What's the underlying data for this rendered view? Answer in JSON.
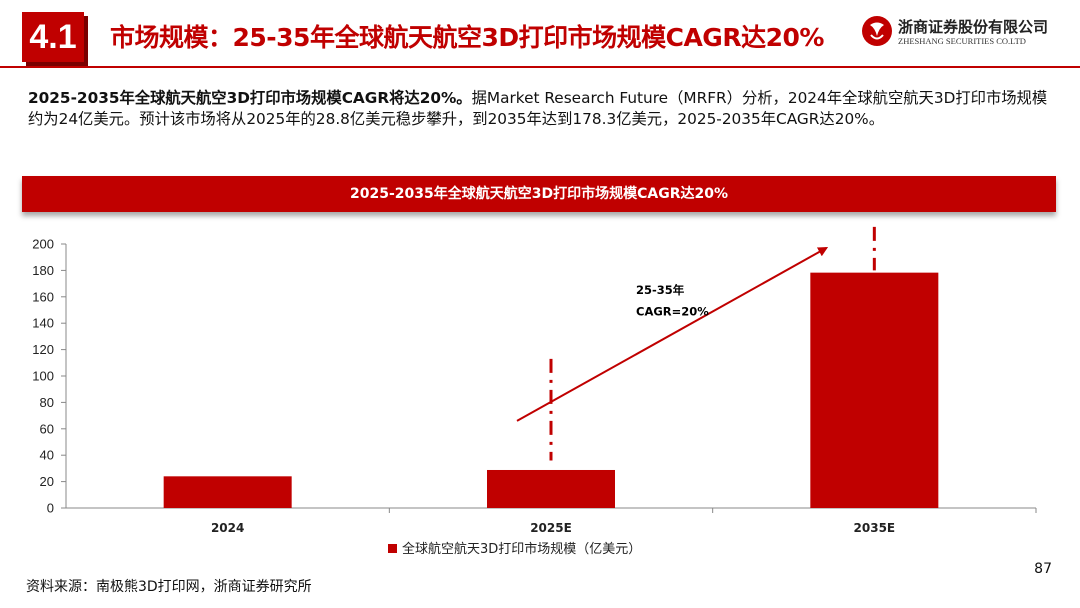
{
  "section_number": "4.1",
  "title": "市场规模：25-35年全球航天航空3D打印市场规模CAGR达20%",
  "logo": {
    "name_cn": "浙商证券股份有限公司",
    "name_en": "ZHESHANG SECURITIES CO.LTD"
  },
  "summary": {
    "lead": "2025-2035年全球航天航空3D打印市场规模CAGR将达20%。",
    "body": "据Market Research Future（MRFR）分析，2024年全球航空航天3D打印市场规模约为24亿美元。预计该市场将从2025年的28.8亿美元稳步攀升，到2035年达到178.3亿美元，2025-2035年CAGR达20%。"
  },
  "chart_banner": "2025-2035年全球航天航空3D打印市场规模CAGR达20%",
  "chart_data": {
    "type": "bar",
    "categories": [
      "2024",
      "2025E",
      "2035E"
    ],
    "series": [
      {
        "name": "全球航空航天3D打印市场规模（亿美元）",
        "values": [
          24,
          28.8,
          178.3
        ]
      }
    ],
    "ylim": [
      0,
      200
    ],
    "yticks": [
      0,
      20,
      40,
      60,
      80,
      100,
      120,
      140,
      160,
      180,
      200
    ],
    "grid": false,
    "legend": "bottom",
    "annotation": {
      "line1": "25-35年",
      "line2": "CAGR=20%"
    },
    "color": "#c00000"
  },
  "source": "资料来源：南极熊3D打印网，浙商证券研究所",
  "page_number": "87",
  "colors": {
    "accent": "#c00000",
    "dark_accent": "#7a0000"
  }
}
